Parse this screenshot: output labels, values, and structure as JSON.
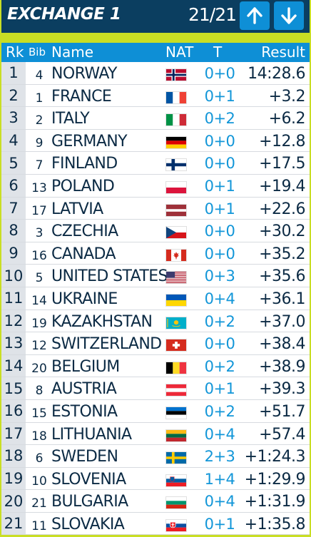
{
  "header": {
    "title": "EXCHANGE 1",
    "counter": "21/21",
    "up_icon": "arrow-up-icon",
    "down_icon": "arrow-down-icon"
  },
  "columns": {
    "rank": "Rk",
    "bib": "Bib",
    "name": "Name",
    "nat": "NAT",
    "shooting": "T",
    "result": "Result"
  },
  "colors": {
    "accent_green": "#c9de24",
    "header_navy": "#0b3e60",
    "header_blue": "#0e8fd6",
    "shooting_text": "#1296d8"
  },
  "rows": [
    {
      "rank": "1",
      "bib": "4",
      "name": "NORWAY",
      "flag": "norway-flag-icon",
      "shooting": "0+0",
      "result": "14:28.6"
    },
    {
      "rank": "2",
      "bib": "1",
      "name": "FRANCE",
      "flag": "france-flag-icon",
      "shooting": "0+1",
      "result": "+3.2"
    },
    {
      "rank": "3",
      "bib": "2",
      "name": "ITALY",
      "flag": "italy-flag-icon",
      "shooting": "0+2",
      "result": "+6.2"
    },
    {
      "rank": "4",
      "bib": "9",
      "name": "GERMANY",
      "flag": "germany-flag-icon",
      "shooting": "0+0",
      "result": "+12.8"
    },
    {
      "rank": "5",
      "bib": "7",
      "name": "FINLAND",
      "flag": "finland-flag-icon",
      "shooting": "0+0",
      "result": "+17.5"
    },
    {
      "rank": "6",
      "bib": "13",
      "name": "POLAND",
      "flag": "poland-flag-icon",
      "shooting": "0+1",
      "result": "+19.4"
    },
    {
      "rank": "7",
      "bib": "17",
      "name": "LATVIA",
      "flag": "latvia-flag-icon",
      "shooting": "0+1",
      "result": "+22.6"
    },
    {
      "rank": "8",
      "bib": "3",
      "name": "CZECHIA",
      "flag": "czechia-flag-icon",
      "shooting": "0+0",
      "result": "+30.2"
    },
    {
      "rank": "9",
      "bib": "16",
      "name": "CANADA",
      "flag": "canada-flag-icon",
      "shooting": "0+0",
      "result": "+35.2"
    },
    {
      "rank": "10",
      "bib": "5",
      "name": "UNITED STATES",
      "flag": "usa-flag-icon",
      "shooting": "0+3",
      "result": "+35.6"
    },
    {
      "rank": "11",
      "bib": "14",
      "name": "UKRAINE",
      "flag": "ukraine-flag-icon",
      "shooting": "0+4",
      "result": "+36.1"
    },
    {
      "rank": "12",
      "bib": "19",
      "name": "KAZAKHSTAN",
      "flag": "kazakhstan-flag-icon",
      "shooting": "0+2",
      "result": "+37.0"
    },
    {
      "rank": "13",
      "bib": "12",
      "name": "SWITZERLAND",
      "flag": "switzerland-flag-icon",
      "shooting": "0+0",
      "result": "+38.4"
    },
    {
      "rank": "14",
      "bib": "20",
      "name": "BELGIUM",
      "flag": "belgium-flag-icon",
      "shooting": "0+2",
      "result": "+38.9"
    },
    {
      "rank": "15",
      "bib": "8",
      "name": "AUSTRIA",
      "flag": "austria-flag-icon",
      "shooting": "0+1",
      "result": "+39.3"
    },
    {
      "rank": "16",
      "bib": "15",
      "name": "ESTONIA",
      "flag": "estonia-flag-icon",
      "shooting": "0+2",
      "result": "+51.7"
    },
    {
      "rank": "17",
      "bib": "18",
      "name": "LITHUANIA",
      "flag": "lithuania-flag-icon",
      "shooting": "0+4",
      "result": "+57.4"
    },
    {
      "rank": "18",
      "bib": "6",
      "name": "SWEDEN",
      "flag": "sweden-flag-icon",
      "shooting": "2+3",
      "result": "+1:24.3"
    },
    {
      "rank": "19",
      "bib": "10",
      "name": "SLOVENIA",
      "flag": "slovenia-flag-icon",
      "shooting": "1+4",
      "result": "+1:29.9"
    },
    {
      "rank": "20",
      "bib": "21",
      "name": "BULGARIA",
      "flag": "bulgaria-flag-icon",
      "shooting": "0+4",
      "result": "+1:31.9"
    },
    {
      "rank": "21",
      "bib": "11",
      "name": "SLOVAKIA",
      "flag": "slovakia-flag-icon",
      "shooting": "0+1",
      "result": "+1:35.8"
    }
  ]
}
